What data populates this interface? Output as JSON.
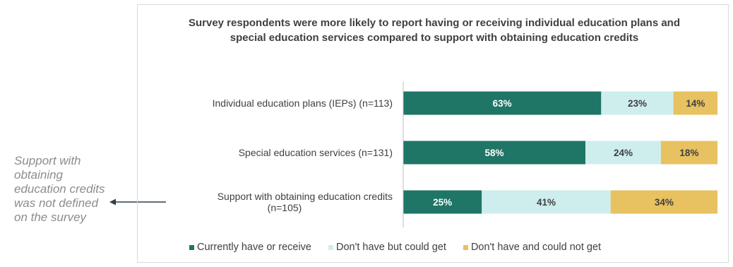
{
  "note": {
    "text": "Support with obtaining education credits was not defined on the survey"
  },
  "colors": {
    "currently": "#1f7566",
    "could_get": "#cdeeec",
    "could_not_get": "#e8c160",
    "axis": "#bfbfbf",
    "arrow": "#2f3f48"
  },
  "chart_data": {
    "type": "bar",
    "orientation": "horizontal",
    "stacked": true,
    "title": "Survey respondents were more likely to report having or receiving individual education plans and special education services compared to support with obtaining education credits",
    "categories": [
      [
        "Individual education plans (IEPs) (n=113)"
      ],
      [
        "Special education services (n=131)"
      ],
      [
        "Support with obtaining education credits",
        "(n=105)"
      ]
    ],
    "series": [
      {
        "name": "Currently have or receive",
        "values": [
          63,
          58,
          25
        ],
        "labels": [
          "63%",
          "58%",
          "25%"
        ]
      },
      {
        "name": "Don't have but could get",
        "values": [
          23,
          24,
          41
        ],
        "labels": [
          "23%",
          "24%",
          "41%"
        ]
      },
      {
        "name": "Don't have and could not get",
        "values": [
          14,
          18,
          34
        ],
        "labels": [
          "14%",
          "18%",
          "34%"
        ]
      }
    ],
    "xlim": [
      0,
      100
    ],
    "legend": "bottom"
  }
}
